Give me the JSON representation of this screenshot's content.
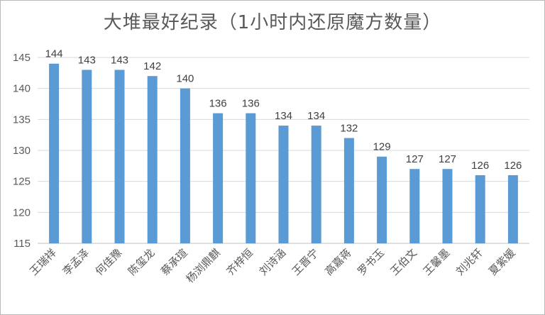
{
  "chart_data": {
    "type": "bar",
    "title": "大堆最好纪录（1小时内还原魔方数量）",
    "xlabel": "",
    "ylabel": "",
    "categories": [
      "王瑞祥",
      "李孟泽",
      "何佳豫",
      "陈玺龙",
      "蔡承瑄",
      "杨浏鼎麒",
      "齐梓恒",
      "刘诗涵",
      "王晋宁",
      "高嘉蒋",
      "罗书玉",
      "王伯文",
      "王馨墨",
      "刘兆轩",
      "夏紫媛"
    ],
    "values": [
      144,
      143,
      143,
      142,
      140,
      136,
      136,
      134,
      134,
      132,
      129,
      127,
      127,
      126,
      126
    ],
    "ylim": [
      115,
      145
    ],
    "yticks": [
      115,
      120,
      125,
      130,
      135,
      140,
      145
    ],
    "grid": true,
    "legend": "none",
    "bar_color": "#5b9bd5"
  }
}
